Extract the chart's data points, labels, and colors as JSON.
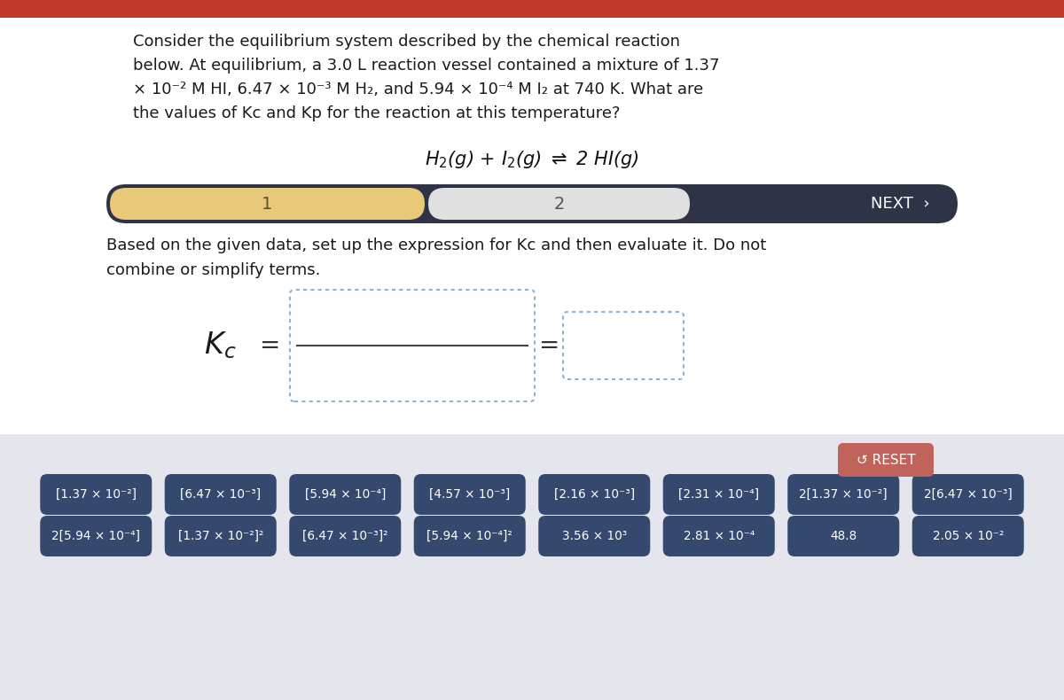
{
  "bg_color": "#ffffff",
  "bottom_bg_color": "#e5e5ee",
  "red_bar_color": "#c0392b",
  "dark_nav_color": "#2e3347",
  "tab1_color": "#e8c97a",
  "tab2_color": "#e0e0e0",
  "reset_color": "#c0635a",
  "button_color": "#35486e",
  "row1_buttons": [
    "[1.37 × 10⁻²]",
    "[6.47 × 10⁻³]",
    "[5.94 × 10⁻⁴]",
    "[4.57 × 10⁻³]",
    "[2.16 × 10⁻³]",
    "[2.31 × 10⁻⁴]",
    "2[1.37 × 10⁻²]",
    "2[6.47 × 10⁻³]"
  ],
  "row2_buttons": [
    "2[5.94 × 10⁻⁴]",
    "[1.37 × 10⁻²]²",
    "[6.47 × 10⁻³]²",
    "[5.94 × 10⁻⁴]²",
    "3.56 × 10³",
    "2.81 × 10⁻⁴",
    "48.8",
    "2.05 × 10⁻²"
  ]
}
